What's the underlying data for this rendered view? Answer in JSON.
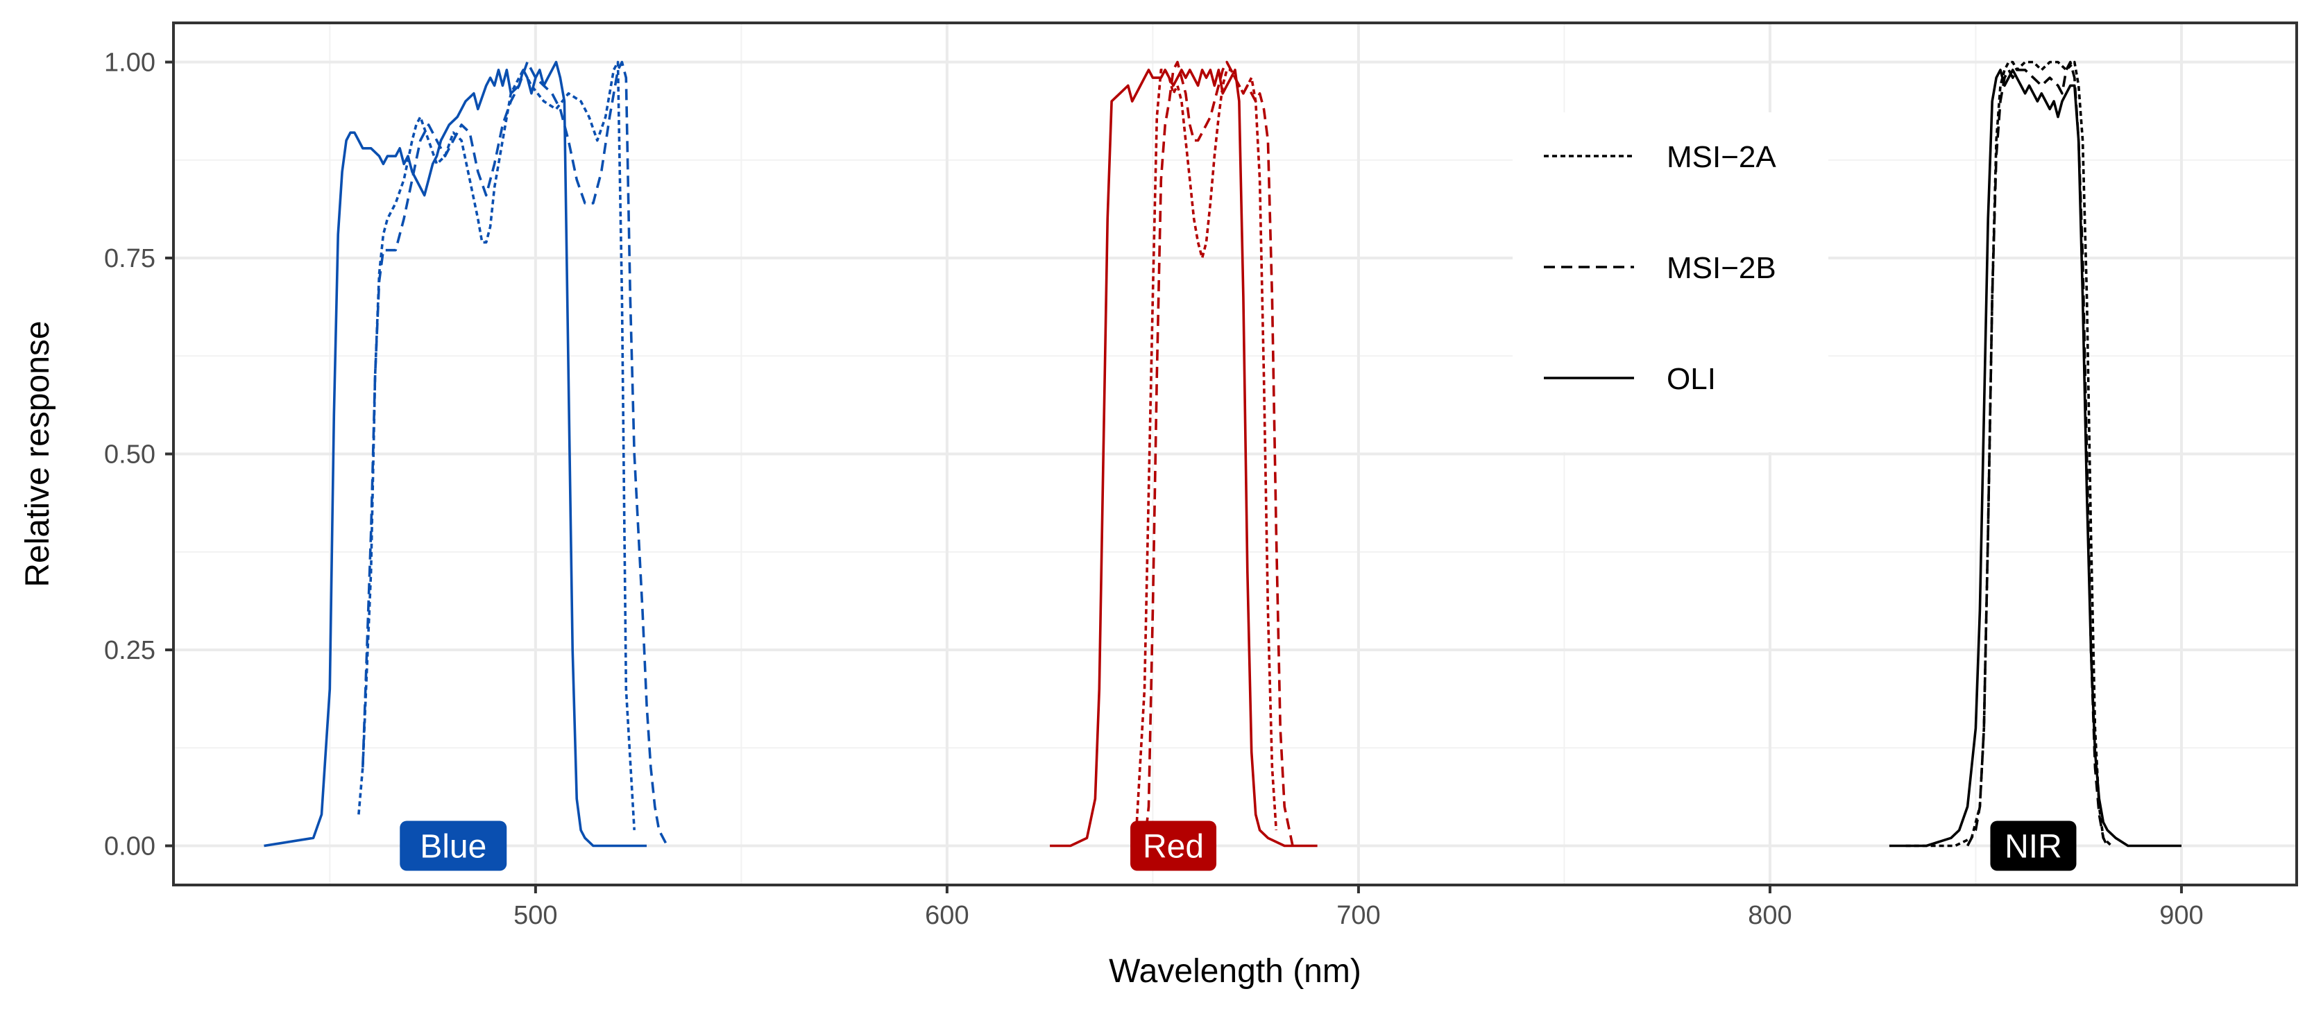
{
  "chart_data": {
    "type": "line",
    "xlabel": "Wavelength (nm)",
    "ylabel": "Relative response",
    "xlim": [
      412,
      928
    ],
    "ylim": [
      -0.05,
      1.05
    ],
    "x_ticks": [
      500,
      600,
      700,
      800,
      900
    ],
    "y_ticks": [
      0.0,
      0.25,
      0.5,
      0.75,
      1.0
    ],
    "y_tick_labels": [
      "0.00",
      "0.25",
      "0.50",
      "0.75",
      "1.00"
    ],
    "grid": true,
    "legend_position": "top-right-inside",
    "legend": [
      {
        "name": "MSI−2A",
        "linestyle": "dotted"
      },
      {
        "name": "MSI−2B",
        "linestyle": "dashed"
      },
      {
        "name": "OLI",
        "linestyle": "solid"
      }
    ],
    "band_labels": [
      {
        "text": "Blue",
        "x": 480,
        "y": 0.0,
        "color": "#0a4fb0"
      },
      {
        "text": "Red",
        "x": 655,
        "y": 0.0,
        "color": "#b30000"
      },
      {
        "text": "NIR",
        "x": 864,
        "y": 0.0,
        "color": "#000000"
      }
    ],
    "series": [
      {
        "name": "OLI",
        "band": "Blue",
        "color": "#0a4fb0",
        "linestyle": "solid",
        "x": [
          434,
          446,
          448,
          450,
          451,
          452,
          453,
          454,
          455,
          456,
          457,
          458,
          460,
          462,
          463,
          464,
          466,
          467,
          468,
          469,
          470,
          471,
          472,
          473,
          474,
          475,
          476,
          477,
          479,
          481,
          482,
          483,
          485,
          486,
          488,
          489,
          490,
          491,
          492,
          493,
          494,
          496,
          497,
          498,
          499,
          500,
          501,
          502,
          504,
          505,
          506,
          507,
          508,
          509,
          510,
          511,
          512,
          514,
          516,
          520,
          527
        ],
        "y": [
          0.0,
          0.01,
          0.04,
          0.2,
          0.55,
          0.78,
          0.86,
          0.9,
          0.91,
          0.91,
          0.9,
          0.89,
          0.89,
          0.88,
          0.87,
          0.88,
          0.88,
          0.89,
          0.87,
          0.88,
          0.86,
          0.85,
          0.84,
          0.83,
          0.85,
          0.87,
          0.88,
          0.9,
          0.92,
          0.93,
          0.94,
          0.95,
          0.96,
          0.94,
          0.97,
          0.98,
          0.97,
          0.99,
          0.97,
          0.99,
          0.96,
          0.97,
          0.99,
          0.98,
          0.96,
          0.98,
          0.99,
          0.97,
          0.99,
          1.0,
          0.98,
          0.95,
          0.6,
          0.25,
          0.06,
          0.02,
          0.01,
          0.0,
          0.0,
          0.0,
          0.0
        ]
      },
      {
        "name": "MSI−2A",
        "band": "Blue",
        "color": "#0a4fb0",
        "linestyle": "dotted",
        "x": [
          457,
          458,
          460,
          461,
          462,
          463,
          464,
          466,
          468,
          470,
          471,
          472,
          474,
          476,
          478,
          480,
          482,
          484,
          486,
          487,
          488,
          489,
          490,
          492,
          494,
          496,
          497,
          499,
          502,
          505,
          508,
          511,
          513,
          515,
          517,
          519,
          520,
          521,
          522,
          524
        ],
        "y": [
          0.04,
          0.1,
          0.35,
          0.6,
          0.73,
          0.78,
          0.8,
          0.82,
          0.85,
          0.9,
          0.92,
          0.93,
          0.9,
          0.87,
          0.88,
          0.91,
          0.9,
          0.85,
          0.8,
          0.77,
          0.77,
          0.79,
          0.84,
          0.9,
          0.96,
          0.98,
          0.99,
          0.97,
          0.95,
          0.94,
          0.96,
          0.95,
          0.93,
          0.9,
          0.93,
          0.99,
          1.0,
          0.7,
          0.2,
          0.02
        ]
      },
      {
        "name": "MSI−2B",
        "band": "Blue",
        "color": "#0a4fb0",
        "linestyle": "dashed",
        "x": [
          458,
          460,
          461,
          462,
          463,
          464,
          466,
          468,
          470,
          472,
          474,
          476,
          478,
          480,
          482,
          484,
          486,
          488,
          490,
          492,
          494,
          496,
          498,
          500,
          502,
          504,
          506,
          508,
          510,
          512,
          514,
          516,
          518,
          520,
          521,
          522,
          523,
          524,
          526,
          527,
          528,
          529,
          530,
          531,
          532
        ],
        "y": [
          0.1,
          0.4,
          0.6,
          0.72,
          0.76,
          0.76,
          0.76,
          0.8,
          0.85,
          0.9,
          0.92,
          0.9,
          0.88,
          0.9,
          0.92,
          0.91,
          0.86,
          0.83,
          0.87,
          0.92,
          0.95,
          0.97,
          1.0,
          0.98,
          0.97,
          0.96,
          0.94,
          0.9,
          0.85,
          0.82,
          0.82,
          0.86,
          0.93,
          0.99,
          1.0,
          0.98,
          0.7,
          0.5,
          0.3,
          0.18,
          0.1,
          0.05,
          0.02,
          0.01,
          0.0
        ]
      },
      {
        "name": "OLI",
        "band": "Red",
        "color": "#b30000",
        "linestyle": "solid",
        "x": [
          625,
          630,
          634,
          636,
          637,
          638,
          639,
          640,
          642,
          644,
          645,
          646,
          648,
          649,
          650,
          652,
          653,
          655,
          656,
          657,
          658,
          659,
          660,
          661,
          662,
          663,
          664,
          665,
          666,
          667,
          668,
          669,
          670,
          671,
          672,
          673,
          674,
          675,
          676,
          678,
          682,
          690
        ],
        "y": [
          0.0,
          0.0,
          0.01,
          0.06,
          0.2,
          0.5,
          0.8,
          0.95,
          0.96,
          0.97,
          0.95,
          0.96,
          0.98,
          0.99,
          0.98,
          0.98,
          0.99,
          0.97,
          0.98,
          0.99,
          0.98,
          0.99,
          0.98,
          0.97,
          0.99,
          0.98,
          0.99,
          0.97,
          0.99,
          0.96,
          0.97,
          0.98,
          0.99,
          0.95,
          0.7,
          0.35,
          0.12,
          0.04,
          0.02,
          0.01,
          0.0,
          0.0
        ]
      },
      {
        "name": "MSI−2A",
        "band": "Red",
        "color": "#b30000",
        "linestyle": "dotted",
        "x": [
          646,
          648,
          650,
          651,
          652,
          653,
          654,
          655,
          656,
          657,
          658,
          659,
          660,
          661,
          662,
          663,
          664,
          665,
          666,
          667,
          668,
          669,
          670,
          671,
          672,
          673,
          674,
          675,
          676,
          677,
          678,
          679,
          680
        ],
        "y": [
          0.02,
          0.2,
          0.7,
          0.93,
          0.99,
          0.99,
          0.98,
          0.96,
          0.97,
          0.95,
          0.9,
          0.85,
          0.8,
          0.77,
          0.75,
          0.77,
          0.82,
          0.88,
          0.93,
          0.97,
          0.99,
          0.99,
          0.98,
          0.97,
          0.96,
          0.97,
          0.98,
          0.95,
          0.85,
          0.6,
          0.3,
          0.1,
          0.02
        ]
      },
      {
        "name": "MSI−2B",
        "band": "Red",
        "color": "#b30000",
        "linestyle": "dashed",
        "x": [
          648,
          649,
          650,
          651,
          652,
          653,
          654,
          655,
          656,
          657,
          658,
          659,
          660,
          661,
          662,
          663,
          664,
          665,
          666,
          667,
          668,
          669,
          670,
          671,
          672,
          673,
          674,
          675,
          676,
          677,
          678,
          679,
          680,
          681,
          682,
          684
        ],
        "y": [
          0.0,
          0.05,
          0.3,
          0.6,
          0.85,
          0.92,
          0.95,
          0.99,
          1.0,
          0.98,
          0.96,
          0.92,
          0.9,
          0.9,
          0.91,
          0.92,
          0.93,
          0.95,
          0.97,
          0.99,
          1.0,
          0.99,
          0.98,
          0.97,
          0.96,
          0.97,
          0.96,
          0.95,
          0.96,
          0.94,
          0.9,
          0.7,
          0.4,
          0.15,
          0.05,
          0.0
        ]
      },
      {
        "name": "OLI",
        "band": "NIR",
        "color": "#000000",
        "linestyle": "solid",
        "x": [
          829,
          838,
          844,
          846,
          848,
          850,
          851,
          852,
          853,
          854,
          855,
          856,
          857,
          858,
          859,
          860,
          861,
          862,
          863,
          864,
          865,
          866,
          867,
          868,
          869,
          870,
          871,
          872,
          873,
          874,
          875,
          876,
          877,
          878,
          879,
          880,
          881,
          882,
          884,
          887,
          900
        ],
        "y": [
          0.0,
          0.0,
          0.01,
          0.02,
          0.05,
          0.15,
          0.3,
          0.55,
          0.8,
          0.95,
          0.98,
          0.99,
          0.97,
          0.98,
          0.99,
          0.98,
          0.97,
          0.96,
          0.97,
          0.96,
          0.95,
          0.96,
          0.95,
          0.94,
          0.95,
          0.93,
          0.95,
          0.96,
          0.97,
          0.97,
          0.9,
          0.7,
          0.45,
          0.25,
          0.12,
          0.06,
          0.03,
          0.02,
          0.01,
          0.0,
          0.0
        ]
      },
      {
        "name": "MSI−2A",
        "band": "NIR",
        "color": "#000000",
        "linestyle": "dotted",
        "x": [
          833,
          845,
          849,
          851,
          852,
          853,
          854,
          855,
          856,
          857,
          858,
          859,
          860,
          862,
          864,
          866,
          868,
          870,
          872,
          874,
          875,
          876,
          877,
          878,
          879,
          880,
          881,
          883
        ],
        "y": [
          0.0,
          0.0,
          0.01,
          0.05,
          0.15,
          0.4,
          0.7,
          0.9,
          0.97,
          0.99,
          1.0,
          1.0,
          0.99,
          1.0,
          1.0,
          0.99,
          1.0,
          1.0,
          0.99,
          1.0,
          0.97,
          0.9,
          0.7,
          0.4,
          0.15,
          0.05,
          0.01,
          0.0
        ]
      },
      {
        "name": "MSI−2B",
        "band": "NIR",
        "color": "#000000",
        "linestyle": "dashed",
        "x": [
          848,
          850,
          851,
          852,
          853,
          854,
          855,
          856,
          857,
          858,
          859,
          860,
          862,
          864,
          866,
          868,
          870,
          871,
          872,
          873,
          874,
          875,
          876,
          877,
          878,
          879,
          880,
          881,
          882
        ],
        "y": [
          0.0,
          0.02,
          0.05,
          0.15,
          0.4,
          0.7,
          0.88,
          0.95,
          0.98,
          0.99,
          0.98,
          0.99,
          0.99,
          0.98,
          0.97,
          0.98,
          0.97,
          0.96,
          0.99,
          1.0,
          0.98,
          0.9,
          0.75,
          0.5,
          0.25,
          0.1,
          0.04,
          0.01,
          0.0
        ]
      }
    ]
  }
}
